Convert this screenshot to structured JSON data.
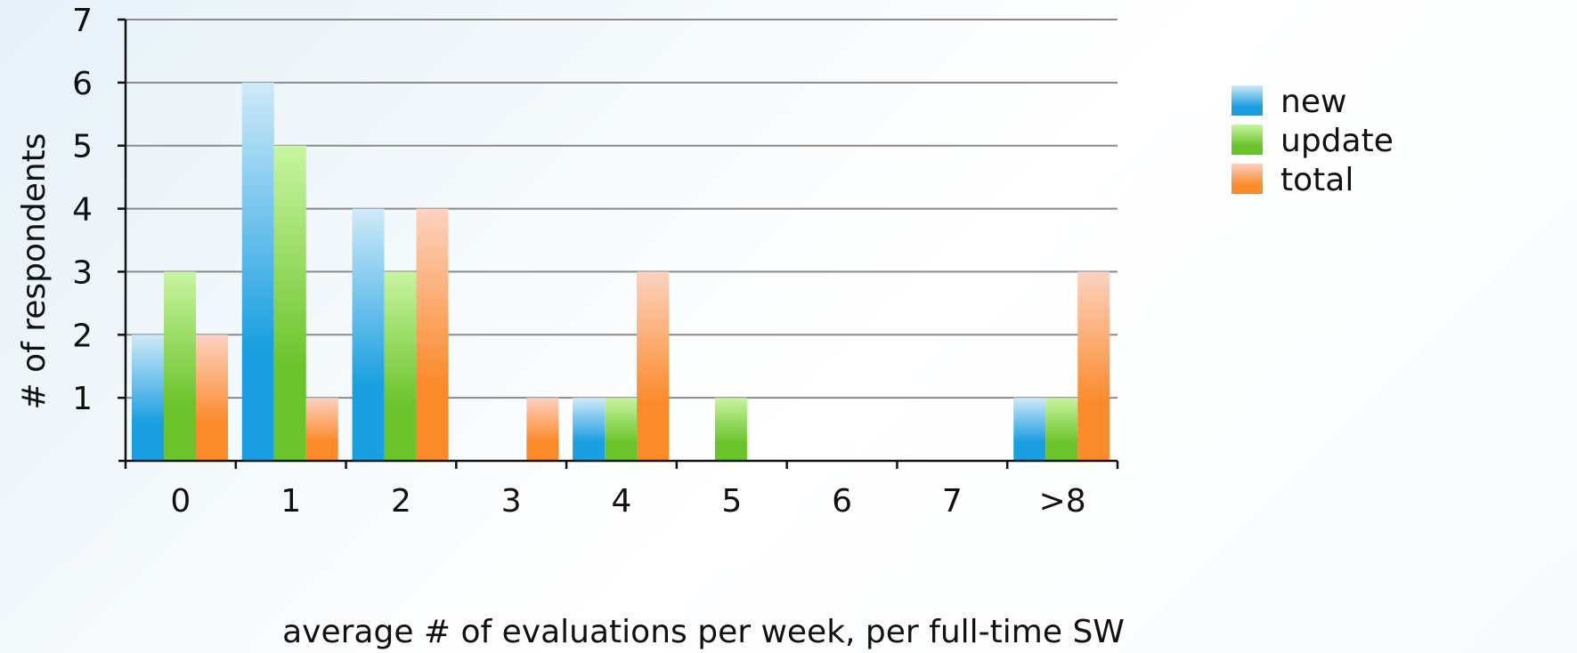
{
  "chart_data": {
    "type": "bar",
    "title": "",
    "xlabel": "average # of evaluations per week, per full-time SW",
    "ylabel": "# of respondents",
    "categories": [
      "0",
      "1",
      "2",
      "3",
      "4",
      "5",
      "6",
      "7",
      ">8"
    ],
    "series": [
      {
        "name": "new",
        "values": [
          2,
          6,
          4,
          0,
          1,
          0,
          0,
          0,
          1
        ],
        "color_light": "#cfeaf9",
        "color": "#1a9fe0"
      },
      {
        "name": "update",
        "values": [
          3,
          5,
          3,
          0,
          1,
          1,
          0,
          0,
          1
        ],
        "color_light": "#c8f5a0",
        "color": "#6cc42c"
      },
      {
        "name": "total",
        "values": [
          2,
          1,
          4,
          1,
          3,
          0,
          0,
          0,
          3
        ],
        "color_light": "#fcd2c0",
        "color": "#fb8a2a"
      }
    ],
    "ylim": [
      0,
      7
    ],
    "yticks": [
      "1",
      "2",
      "3",
      "4",
      "5",
      "6",
      "7"
    ],
    "grid": true,
    "legend_position": "right"
  }
}
